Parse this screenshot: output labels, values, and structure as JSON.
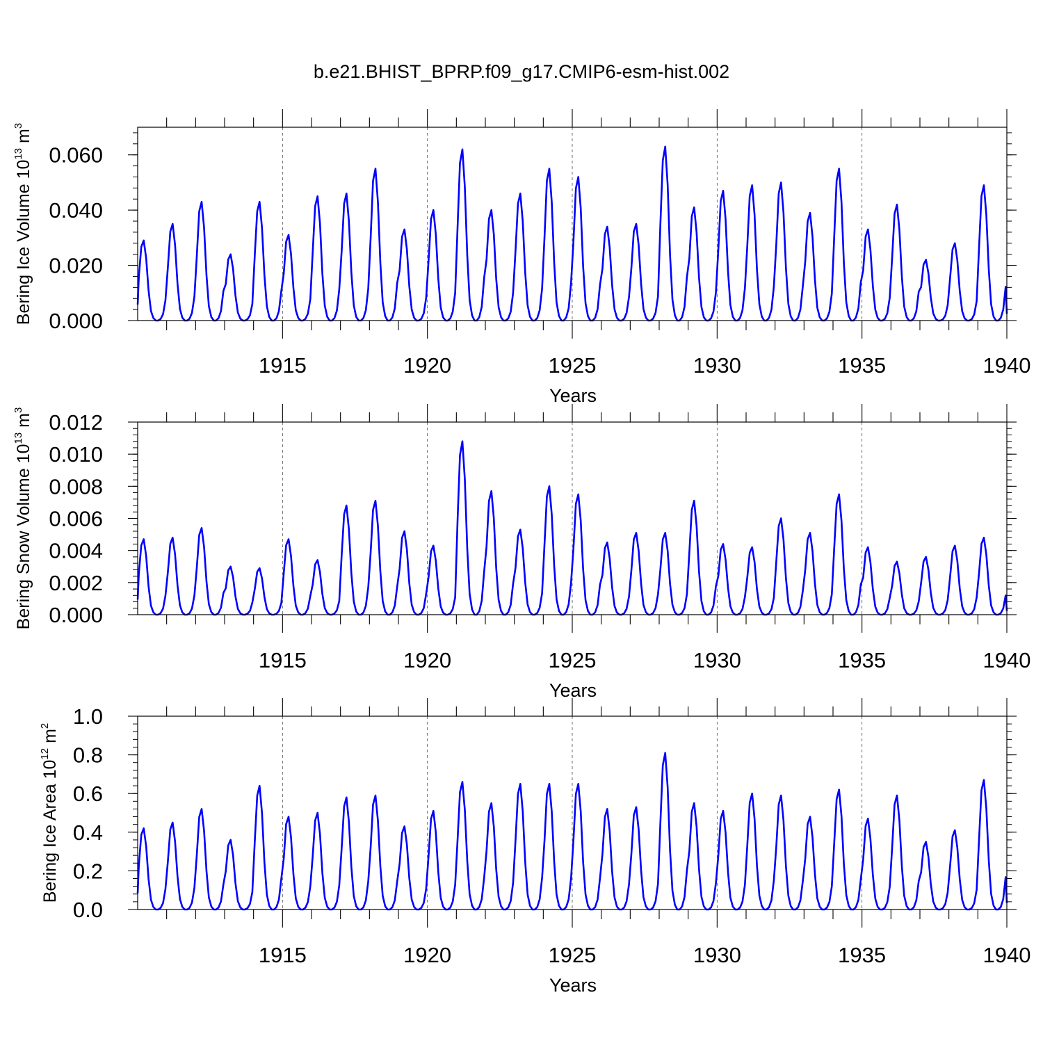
{
  "title": "b.e21.BHIST_BPRP.f09_g17.CMIP6-esm-hist.002",
  "colors": {
    "line": "#0000ff",
    "axis": "#000000",
    "grid": "#000000"
  },
  "chart_data": [
    {
      "type": "line",
      "name": "ice-volume",
      "ylabel": {
        "main": "Bering Ice Volume 10",
        "exp": "13",
        "unit": " m",
        "unit_exp": "3"
      },
      "xlabel": "Years",
      "xlim": [
        1910,
        1940
      ],
      "ylim": [
        0.0,
        0.07
      ],
      "yticks": [
        0.0,
        0.02,
        0.04,
        0.06
      ],
      "ytick_labels": [
        "0.000",
        "0.020",
        "0.040",
        "0.060"
      ],
      "xticks": [
        1915,
        1920,
        1925,
        1930,
        1935,
        1940
      ],
      "xtick_labels": [
        "1915",
        "1920",
        "1925",
        "1930",
        "1935",
        "1940"
      ],
      "peaks": [
        0.029,
        0.035,
        0.043,
        0.024,
        0.043,
        0.031,
        0.045,
        0.046,
        0.055,
        0.033,
        0.04,
        0.062,
        0.04,
        0.046,
        0.055,
        0.052,
        0.034,
        0.035,
        0.063,
        0.041,
        0.047,
        0.049,
        0.05,
        0.039,
        0.055,
        0.033,
        0.042,
        0.022,
        0.028,
        0.049
      ]
    },
    {
      "type": "line",
      "name": "snow-volume",
      "ylabel": {
        "main": "Bering Snow Volume 10",
        "exp": "13",
        "unit": " m",
        "unit_exp": "3"
      },
      "xlabel": "Years",
      "xlim": [
        1910,
        1940
      ],
      "ylim": [
        0.0,
        0.012
      ],
      "yticks": [
        0.0,
        0.002,
        0.004,
        0.006,
        0.008,
        0.01,
        0.012
      ],
      "ytick_labels": [
        "0.000",
        "0.002",
        "0.004",
        "0.006",
        "0.008",
        "0.010",
        "0.012"
      ],
      "xticks": [
        1915,
        1920,
        1925,
        1930,
        1935,
        1940
      ],
      "xtick_labels": [
        "1915",
        "1920",
        "1925",
        "1930",
        "1935",
        "1940"
      ],
      "peaks": [
        0.0047,
        0.0048,
        0.0054,
        0.003,
        0.0029,
        0.0047,
        0.0034,
        0.0068,
        0.0071,
        0.0052,
        0.0043,
        0.0108,
        0.0077,
        0.0053,
        0.008,
        0.0075,
        0.0045,
        0.0051,
        0.0051,
        0.0071,
        0.0044,
        0.0042,
        0.006,
        0.0051,
        0.0075,
        0.0042,
        0.0033,
        0.0036,
        0.0043,
        0.0048
      ]
    },
    {
      "type": "line",
      "name": "ice-area",
      "ylabel": {
        "main": "Bering Ice Area 10",
        "exp": "12",
        "unit": " m",
        "unit_exp": "2"
      },
      "xlabel": "Years",
      "xlim": [
        1910,
        1940
      ],
      "ylim": [
        0.0,
        1.0
      ],
      "yticks": [
        0.0,
        0.2,
        0.4,
        0.6,
        0.8,
        1.0
      ],
      "ytick_labels": [
        "0.0",
        "0.2",
        "0.4",
        "0.6",
        "0.8",
        "1.0"
      ],
      "xticks": [
        1915,
        1920,
        1925,
        1930,
        1935,
        1940
      ],
      "xtick_labels": [
        "1915",
        "1920",
        "1925",
        "1930",
        "1935",
        "1940"
      ],
      "peaks": [
        0.42,
        0.45,
        0.52,
        0.36,
        0.64,
        0.48,
        0.5,
        0.58,
        0.59,
        0.43,
        0.51,
        0.66,
        0.55,
        0.65,
        0.65,
        0.65,
        0.52,
        0.53,
        0.81,
        0.55,
        0.51,
        0.6,
        0.59,
        0.48,
        0.62,
        0.47,
        0.59,
        0.35,
        0.41,
        0.67
      ]
    }
  ]
}
